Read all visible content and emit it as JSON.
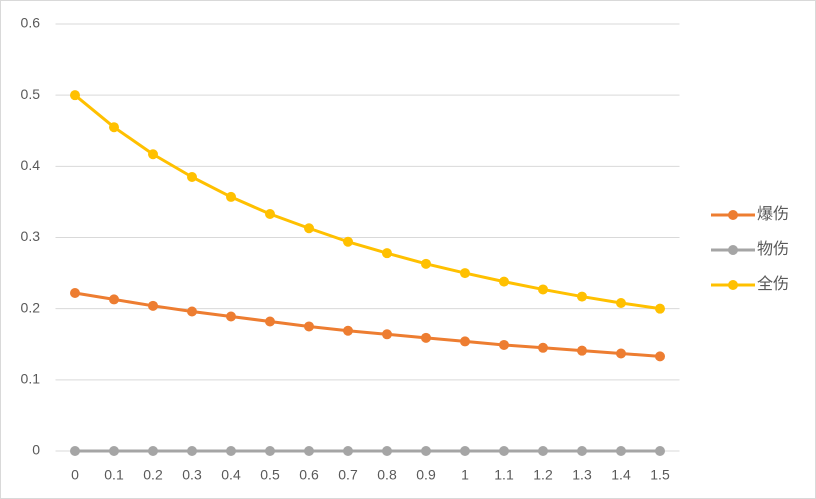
{
  "chart_data": {
    "type": "line",
    "categories": [
      "0",
      "0.1",
      "0.2",
      "0.3",
      "0.4",
      "0.5",
      "0.6",
      "0.7",
      "0.8",
      "0.9",
      "1",
      "1.1",
      "1.2",
      "1.3",
      "1.4",
      "1.5"
    ],
    "series": [
      {
        "name": "爆伤",
        "color": "#ed7d31",
        "values": [
          0.222,
          0.213,
          0.204,
          0.196,
          0.189,
          0.182,
          0.175,
          0.169,
          0.164,
          0.159,
          0.154,
          0.149,
          0.145,
          0.141,
          0.137,
          0.133
        ]
      },
      {
        "name": "物伤",
        "color": "#a5a5a5",
        "values": [
          0,
          0,
          0,
          0,
          0,
          0,
          0,
          0,
          0,
          0,
          0,
          0,
          0,
          0,
          0,
          0
        ]
      },
      {
        "name": "全伤",
        "color": "#ffc000",
        "values": [
          0.5,
          0.455,
          0.417,
          0.385,
          0.357,
          0.333,
          0.313,
          0.294,
          0.278,
          0.263,
          0.25,
          0.238,
          0.227,
          0.217,
          0.208,
          0.2
        ]
      }
    ],
    "ylim": [
      0,
      0.6
    ],
    "yticks": [
      0,
      0.1,
      0.2,
      0.3,
      0.4,
      0.5,
      0.6
    ],
    "grid": true,
    "legend": "right"
  }
}
